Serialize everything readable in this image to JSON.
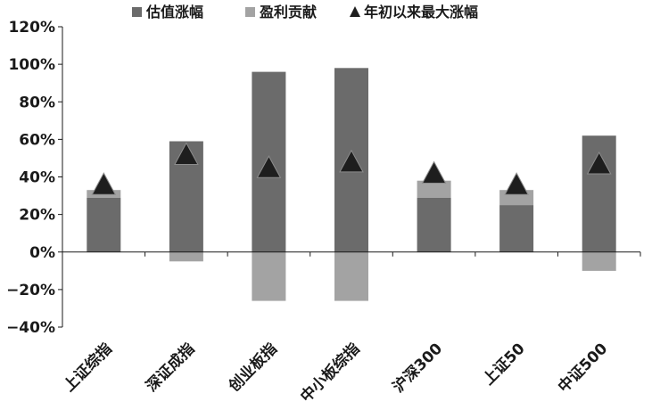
{
  "chart_data": {
    "type": "bar",
    "categories": [
      "上证综指",
      "深证成指",
      "创业板指",
      "中小板综指",
      "沪深300",
      "上证50",
      "中证500"
    ],
    "series": [
      {
        "name": "估值涨幅",
        "kind": "bar",
        "color": "#6b6b6b",
        "values": [
          29,
          59,
          96,
          98,
          29,
          25,
          62
        ]
      },
      {
        "name": "盈利贡献",
        "kind": "bar",
        "color": "#a3a3a3",
        "values": [
          4,
          -5,
          -26,
          -26,
          9,
          8,
          -10
        ]
      },
      {
        "name": "年初以来最大涨幅",
        "kind": "marker",
        "marker": "triangle",
        "color": "#1e1e1e",
        "values": [
          35,
          51,
          44,
          47,
          41,
          35,
          46
        ]
      }
    ],
    "ylim": [
      -40,
      120
    ],
    "yticks": [
      -40,
      -20,
      0,
      20,
      40,
      60,
      80,
      100,
      120
    ],
    "ytick_labels": [
      "−40%",
      "−20%",
      "0%",
      "20%",
      "40%",
      "60%",
      "80%",
      "100%",
      "120%"
    ],
    "legend_position": "top",
    "grid": false
  }
}
